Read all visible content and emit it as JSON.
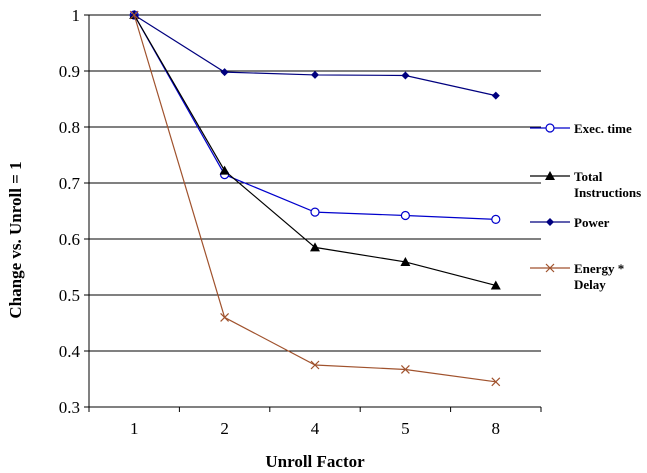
{
  "chart_data": {
    "type": "line",
    "title": "",
    "xlabel": "Unroll Factor",
    "ylabel": "Change vs. Unroll = 1",
    "categories": [
      "1",
      "2",
      "4",
      "5",
      "8"
    ],
    "ylim": [
      0.3,
      1.0
    ],
    "yticks": [
      "0.3",
      "0.4",
      "0.5",
      "0.6",
      "0.7",
      "0.8",
      "0.9",
      "1"
    ],
    "grid": "horizontal",
    "legend_position": "right",
    "series": [
      {
        "name": "Exec. time",
        "color": "#0000cc",
        "marker": "open-circle",
        "values": [
          1.0,
          0.715,
          0.648,
          0.642,
          0.635
        ]
      },
      {
        "name": "Total Instructions",
        "color": "#000000",
        "marker": "triangle",
        "values": [
          1.0,
          0.722,
          0.585,
          0.559,
          0.517
        ]
      },
      {
        "name": "Power",
        "color": "#00007f",
        "marker": "diamond",
        "values": [
          1.0,
          0.898,
          0.893,
          0.892,
          0.856
        ]
      },
      {
        "name": "Energy * Delay",
        "color": "#a0522d",
        "marker": "x",
        "values": [
          1.0,
          0.46,
          0.375,
          0.367,
          0.345
        ]
      }
    ]
  }
}
